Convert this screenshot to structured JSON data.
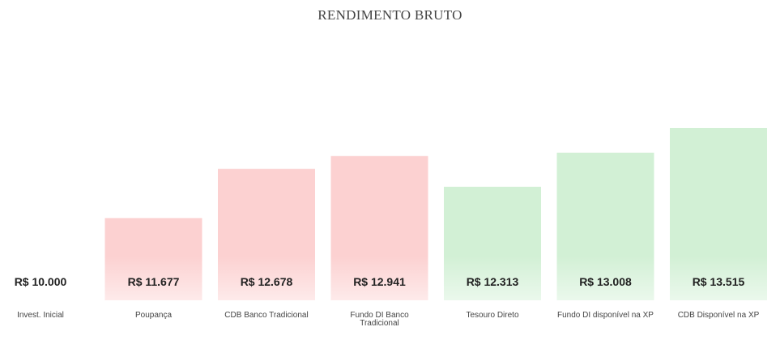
{
  "chart_data": {
    "type": "bar",
    "title": "RENDIMENTO BRUTO",
    "xlabel": "",
    "ylabel": "",
    "categories": [
      "Invest. Inicial",
      "Poupança",
      "CDB Banco Tradicional",
      "Fundo DI Banco Tradicional",
      "Tesouro Direto",
      "Fundo DI disponível na XP",
      "CDB Disponível na XP"
    ],
    "values": [
      10000,
      11677,
      12678,
      12941,
      12313,
      13008,
      13515
    ],
    "value_labels": [
      "R$ 10.000",
      "R$ 11.677",
      "R$ 12.678",
      "R$ 12.941",
      "R$ 12.313",
      "R$ 13.008",
      "R$ 13.515"
    ],
    "bar_colors": [
      "#ffffff",
      "#fcd1d1",
      "#fcd1d1",
      "#fcd1d1",
      "#d2f0d5",
      "#d2f0d5",
      "#d2f0d5"
    ],
    "ylim": [
      10000,
      13515
    ],
    "grid": false,
    "legend": "none"
  }
}
